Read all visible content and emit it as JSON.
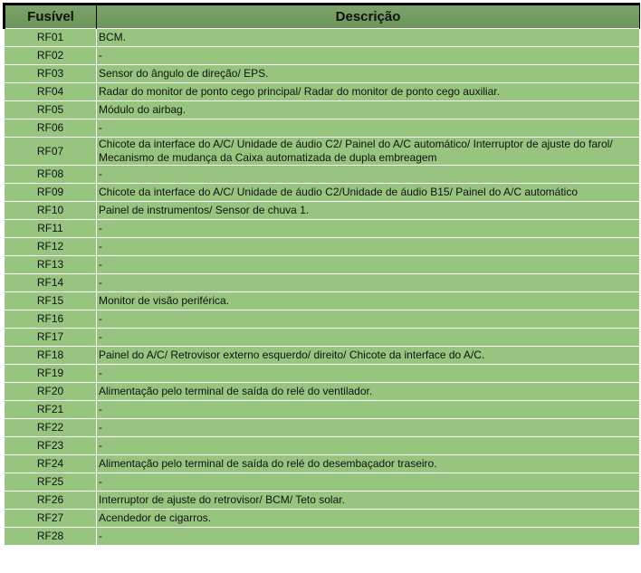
{
  "headers": {
    "fuse": "Fusível",
    "desc": "Descrição"
  },
  "rows": [
    {
      "fuse": "RF01",
      "desc": "BCM."
    },
    {
      "fuse": "RF02",
      "desc": "-"
    },
    {
      "fuse": "RF03",
      "desc": "Sensor do ângulo de direção/ EPS."
    },
    {
      "fuse": "RF04",
      "desc": "Radar do monitor de ponto cego principal/ Radar do monitor de ponto cego auxiliar."
    },
    {
      "fuse": "RF05",
      "desc": "Módulo do airbag."
    },
    {
      "fuse": "RF06",
      "desc": "-"
    },
    {
      "fuse": "RF07",
      "desc": "Chicote da interface do A/C/ Unidade de áudio C2/ Painel do A/C automático/ Interruptor de ajuste do farol/ Mecanismo de mudança da Caixa automatizada de dupla embreagem"
    },
    {
      "fuse": "RF08",
      "desc": "-"
    },
    {
      "fuse": "RF09",
      "desc": "Chicote da interface do A/C/ Unidade de áudio C2/Unidade de áudio B15/ Painel do A/C automático"
    },
    {
      "fuse": "RF10",
      "desc": "Painel de instrumentos/ Sensor de chuva 1."
    },
    {
      "fuse": "RF11",
      "desc": "-"
    },
    {
      "fuse": "RF12",
      "desc": "-"
    },
    {
      "fuse": "RF13",
      "desc": "-"
    },
    {
      "fuse": "RF14",
      "desc": "-"
    },
    {
      "fuse": "RF15",
      "desc": "Monitor de visão periférica."
    },
    {
      "fuse": "RF16",
      "desc": "-"
    },
    {
      "fuse": "RF17",
      "desc": "-"
    },
    {
      "fuse": "RF18",
      "desc": "Painel do A/C/ Retrovisor externo esquerdo/ direito/ Chicote da interface do A/C."
    },
    {
      "fuse": "RF19",
      "desc": "-"
    },
    {
      "fuse": "RF20",
      "desc": "Alimentação pelo terminal de saída do relé do ventilador."
    },
    {
      "fuse": "RF21",
      "desc": "-"
    },
    {
      "fuse": "RF22",
      "desc": "-"
    },
    {
      "fuse": "RF23",
      "desc": "-"
    },
    {
      "fuse": "RF24",
      "desc": "Alimentação pelo terminal de saída do relé do desembaçador traseiro."
    },
    {
      "fuse": "RF25",
      "desc": "-"
    },
    {
      "fuse": "RF26",
      "desc": "Interruptor de ajuste do retrovisor/ BCM/ Teto solar."
    },
    {
      "fuse": "RF27",
      "desc": "Acendedor de cigarros."
    },
    {
      "fuse": "RF28",
      "desc": "-"
    }
  ]
}
